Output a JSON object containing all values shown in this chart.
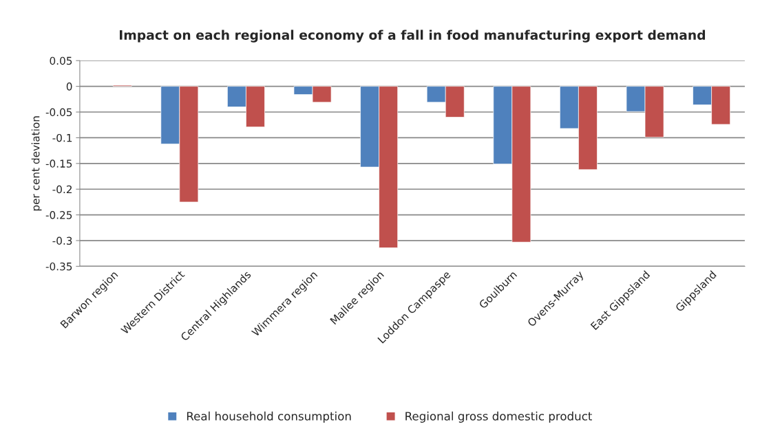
{
  "chart_data": {
    "type": "bar",
    "title": "Impact on each regional economy of a fall in food manufacturing export demand",
    "ylabel": "per cent deviation",
    "categories": [
      "Barwon region",
      "Western District",
      "Central Highlands",
      "Wimmera region",
      "Mallee region",
      "Loddon Campaspe",
      "Goulburn",
      "Ovens-Murray",
      "East Gippsland",
      "Gippsland"
    ],
    "series": [
      {
        "name": "Real household consumption",
        "color": "#4f81bd",
        "values": [
          null,
          -0.112,
          -0.04,
          -0.016,
          -0.157,
          -0.031,
          -0.151,
          -0.082,
          -0.049,
          -0.036
        ]
      },
      {
        "name": "Regional gross domestic product",
        "color": "#c0504d",
        "values": [
          0.002,
          -0.225,
          -0.079,
          -0.031,
          -0.314,
          -0.06,
          -0.303,
          -0.162,
          -0.099,
          -0.074
        ]
      }
    ],
    "ylim": [
      -0.35,
      0.05
    ],
    "yticks": [
      {
        "value": -0.35,
        "label": "-0.35"
      },
      {
        "value": -0.3,
        "label": "-0.3"
      },
      {
        "value": -0.25,
        "label": "-0.25"
      },
      {
        "value": -0.2,
        "label": "-0.2"
      },
      {
        "value": -0.15,
        "label": "-0.15"
      },
      {
        "value": -0.1,
        "label": "-0.1"
      },
      {
        "value": -0.05,
        "label": "-0.05"
      },
      0,
      0.05
    ],
    "grid": "y",
    "legend": "bottom"
  }
}
